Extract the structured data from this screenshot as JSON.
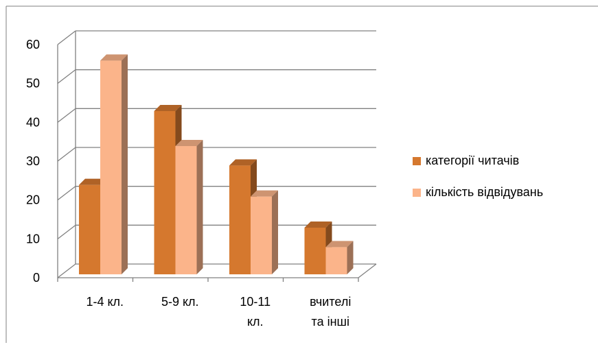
{
  "chart_data": {
    "type": "bar",
    "categories": [
      [
        "1-4 кл."
      ],
      [
        "5-9 кл."
      ],
      [
        "10-11",
        "кл."
      ],
      [
        "вчителі",
        "та інші"
      ]
    ],
    "series": [
      {
        "name": "категорії читачів",
        "values": [
          23,
          42,
          28,
          12
        ],
        "color": "#D5782E"
      },
      {
        "name": "кількість відвідувань",
        "values": [
          55,
          33,
          20,
          7
        ],
        "color": "#FBB48A"
      }
    ],
    "yticks": [
      0,
      10,
      20,
      30,
      40,
      50,
      60
    ],
    "ylim": [
      0,
      60
    ],
    "grid": true,
    "legend_position": "right",
    "style": "3d-clustered-column"
  }
}
